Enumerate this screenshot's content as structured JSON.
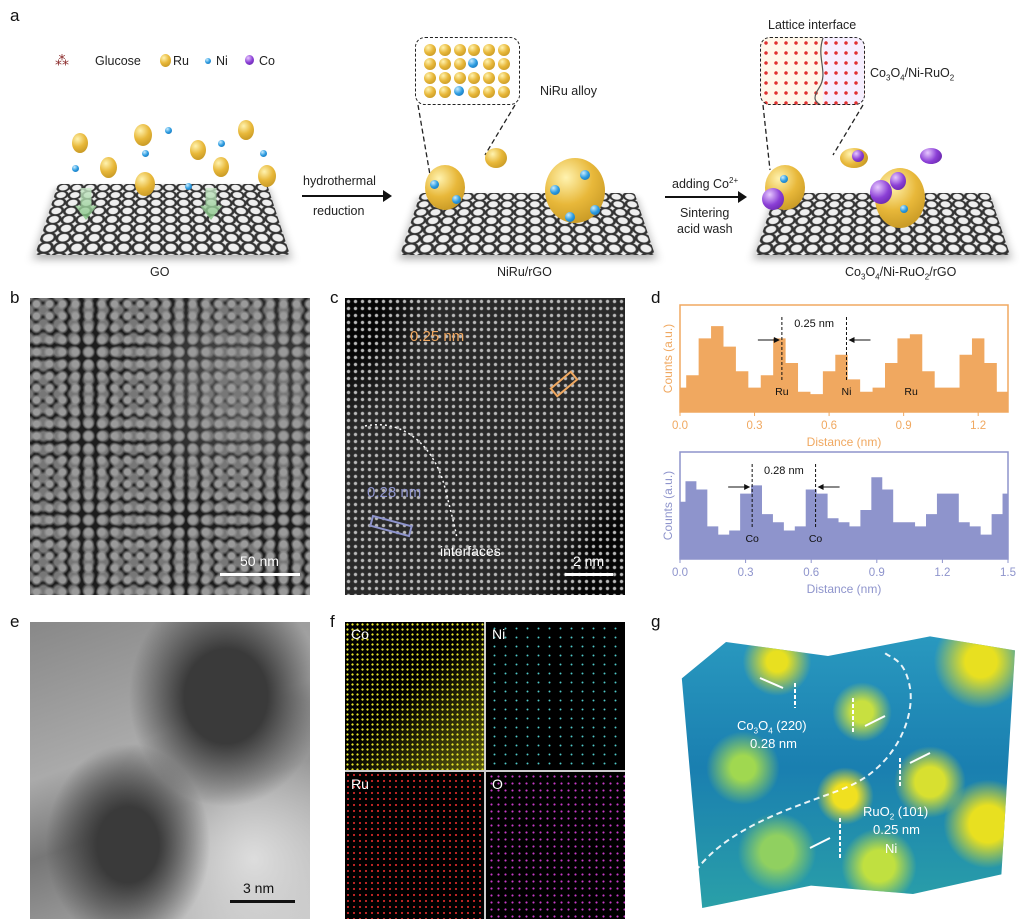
{
  "panel_labels": {
    "a": "a",
    "b": "b",
    "c": "c",
    "d": "d",
    "e": "e",
    "f": "f",
    "g": "g"
  },
  "panel_a": {
    "legend": {
      "glucose": "Glucose",
      "ru": "Ru",
      "ni": "Ni",
      "co": "Co"
    },
    "step1_label": "GO",
    "arrow1_top": "hydrothermal",
    "arrow1_bottom": "reduction",
    "step2_label": "NiRu/rGO",
    "inset1_label": "NiRu alloy",
    "arrow2_top": "adding Co",
    "arrow2_sup": "2+",
    "arrow2_mid": "Sintering",
    "arrow2_bottom": "acid wash",
    "inset2_title": "Lattice interface",
    "inset2_label": {
      "a": "Co",
      "s1": "3",
      "b": "O",
      "s2": "4",
      "c": "/Ni-RuO",
      "s3": "2"
    },
    "step3_label": {
      "a": "Co",
      "s1": "3",
      "b": "O",
      "s2": "4",
      "c": "/Ni-RuO",
      "s3": "2",
      "d": "/rGO"
    },
    "colors": {
      "ru": "#e8b83a",
      "ni": "#2b9be0",
      "co": "#8b3fd6"
    }
  },
  "panel_b": {
    "scale_bar": "50 nm"
  },
  "panel_c": {
    "spacing_top": "0.25 nm",
    "spacing_bottom": "0.28 nm",
    "interfaces": "interfaces",
    "scale_bar": "2 nm"
  },
  "panel_e": {
    "scale_bar": "3 nm"
  },
  "panel_f": {
    "maps": [
      "Co",
      "Ni",
      "Ru",
      "O"
    ],
    "colors": [
      "#e6e62a",
      "#4fc8c8",
      "#d42a2a",
      "#c43ac4"
    ]
  },
  "panel_g": {
    "label1": {
      "a": "Co",
      "s1": "3",
      "b": "O",
      "s2": "4",
      "c": " (220)"
    },
    "label1_val": "0.28 nm",
    "label2": {
      "a": "RuO",
      "s1": "2",
      "c": " (101)"
    },
    "label2_val": "0.25 nm",
    "label3": "Ni"
  },
  "chart_data": [
    {
      "type": "area",
      "xlabel": "Distance (nm)",
      "ylabel": "Counts (a.u.)",
      "xlim": [
        0,
        1.32
      ],
      "xticks": [
        "0.0",
        "0.3",
        "0.6",
        "0.9",
        "1.2"
      ],
      "color": "#f0a860",
      "x": [
        0,
        0.05,
        0.1,
        0.15,
        0.2,
        0.25,
        0.3,
        0.35,
        0.4,
        0.45,
        0.5,
        0.55,
        0.6,
        0.65,
        0.7,
        0.75,
        0.8,
        0.85,
        0.9,
        0.95,
        1.0,
        1.05,
        1.1,
        1.15,
        1.2,
        1.25,
        1.3
      ],
      "values": [
        0.2,
        0.35,
        0.8,
        0.95,
        0.7,
        0.4,
        0.2,
        0.35,
        0.8,
        0.5,
        0.15,
        0.12,
        0.4,
        0.6,
        0.3,
        0.15,
        0.2,
        0.5,
        0.8,
        0.85,
        0.4,
        0.2,
        0.2,
        0.6,
        0.8,
        0.5,
        0.15
      ],
      "markers": [
        {
          "x": 0.41,
          "label": "Ru"
        },
        {
          "x": 0.67,
          "label": "Ni"
        },
        {
          "x": 0.93,
          "label": "Ru",
          "line": false
        }
      ],
      "annotation": "0.25 nm"
    },
    {
      "type": "area",
      "xlabel": "Distance (nm)",
      "ylabel": "Counts (a.u.)",
      "xlim": [
        0,
        1.5
      ],
      "xticks": [
        "0.0",
        "0.3",
        "0.6",
        "0.9",
        "1.2",
        "1.5"
      ],
      "color": "#8e94cc",
      "x": [
        0,
        0.05,
        0.1,
        0.15,
        0.2,
        0.25,
        0.3,
        0.35,
        0.4,
        0.45,
        0.5,
        0.55,
        0.6,
        0.65,
        0.7,
        0.75,
        0.8,
        0.85,
        0.9,
        0.95,
        1.0,
        1.05,
        1.1,
        1.15,
        1.2,
        1.25,
        1.3,
        1.35,
        1.4,
        1.45,
        1.5
      ],
      "values": [
        0.6,
        0.85,
        0.75,
        0.3,
        0.2,
        0.25,
        0.7,
        0.8,
        0.45,
        0.35,
        0.25,
        0.3,
        0.75,
        0.7,
        0.4,
        0.35,
        0.3,
        0.5,
        0.9,
        0.75,
        0.35,
        0.35,
        0.3,
        0.45,
        0.7,
        0.7,
        0.35,
        0.3,
        0.2,
        0.45,
        0.7
      ],
      "markers": [
        {
          "x": 0.33,
          "label": "Co"
        },
        {
          "x": 0.62,
          "label": "Co"
        }
      ],
      "annotation": "0.28 nm"
    }
  ]
}
